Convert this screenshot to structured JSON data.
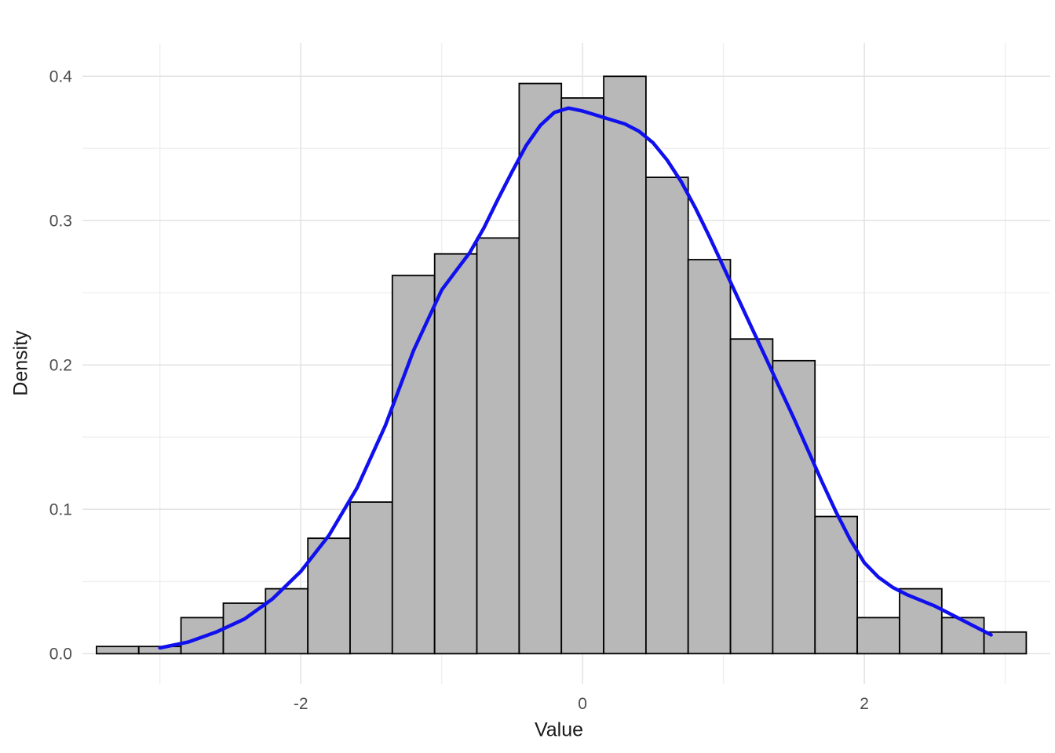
{
  "chart_data": {
    "type": "bar",
    "subtype": "histogram-with-density-overlay",
    "title": "",
    "xlabel": "Value",
    "ylabel": "Density",
    "xlim": [
      -3.55,
      3.32
    ],
    "ylim": [
      -0.021,
      0.423
    ],
    "grid": "on",
    "legend": "none",
    "x_major_ticks": [
      {
        "value": -2,
        "label": "-2"
      },
      {
        "value": 0,
        "label": "0"
      },
      {
        "value": 2,
        "label": "2"
      }
    ],
    "x_minor_gridlines": [
      -3,
      -1,
      1,
      3
    ],
    "y_major_ticks": [
      {
        "value": 0.0,
        "label": "0.0"
      },
      {
        "value": 0.1,
        "label": "0.1"
      },
      {
        "value": 0.2,
        "label": "0.2"
      },
      {
        "value": 0.3,
        "label": "0.3"
      },
      {
        "value": 0.4,
        "label": "0.4"
      }
    ],
    "y_minor_gridlines": [
      0.05,
      0.15,
      0.25,
      0.35
    ],
    "histogram": {
      "bin_start": -3.45,
      "bin_width": 0.3,
      "densities": [
        0.005,
        0.005,
        0.025,
        0.035,
        0.045,
        0.08,
        0.105,
        0.262,
        0.277,
        0.288,
        0.395,
        0.385,
        0.4,
        0.33,
        0.273,
        0.218,
        0.203,
        0.095,
        0.025,
        0.045,
        0.025,
        0.015
      ]
    },
    "density_curve": {
      "points": [
        [
          -3.0,
          0.004
        ],
        [
          -2.8,
          0.008
        ],
        [
          -2.6,
          0.015
        ],
        [
          -2.4,
          0.024
        ],
        [
          -2.2,
          0.038
        ],
        [
          -2.0,
          0.057
        ],
        [
          -1.8,
          0.082
        ],
        [
          -1.6,
          0.115
        ],
        [
          -1.4,
          0.158
        ],
        [
          -1.2,
          0.21
        ],
        [
          -1.0,
          0.252
        ],
        [
          -0.9,
          0.265
        ],
        [
          -0.8,
          0.278
        ],
        [
          -0.7,
          0.295
        ],
        [
          -0.6,
          0.315
        ],
        [
          -0.5,
          0.334
        ],
        [
          -0.4,
          0.352
        ],
        [
          -0.3,
          0.366
        ],
        [
          -0.2,
          0.375
        ],
        [
          -0.1,
          0.378
        ],
        [
          0.0,
          0.376
        ],
        [
          0.1,
          0.373
        ],
        [
          0.2,
          0.37
        ],
        [
          0.3,
          0.367
        ],
        [
          0.4,
          0.362
        ],
        [
          0.5,
          0.354
        ],
        [
          0.6,
          0.342
        ],
        [
          0.7,
          0.327
        ],
        [
          0.8,
          0.309
        ],
        [
          0.9,
          0.289
        ],
        [
          1.0,
          0.268
        ],
        [
          1.1,
          0.247
        ],
        [
          1.2,
          0.226
        ],
        [
          1.3,
          0.205
        ],
        [
          1.4,
          0.184
        ],
        [
          1.5,
          0.163
        ],
        [
          1.6,
          0.141
        ],
        [
          1.7,
          0.119
        ],
        [
          1.8,
          0.098
        ],
        [
          1.9,
          0.079
        ],
        [
          2.0,
          0.063
        ],
        [
          2.1,
          0.053
        ],
        [
          2.2,
          0.046
        ],
        [
          2.3,
          0.041
        ],
        [
          2.4,
          0.037
        ],
        [
          2.5,
          0.033
        ],
        [
          2.6,
          0.028
        ],
        [
          2.7,
          0.023
        ],
        [
          2.8,
          0.018
        ],
        [
          2.9,
          0.013
        ]
      ]
    },
    "colors": {
      "background": "#ffffff",
      "bar_fill": "#b8b8b8",
      "bar_stroke": "#000000",
      "density_line": "#1010ee",
      "grid_major": "#e3e3e3",
      "grid_minor": "#f0f0f0",
      "tick_label": "#4d4d4d",
      "axis_title": "#1a1a1a"
    }
  }
}
